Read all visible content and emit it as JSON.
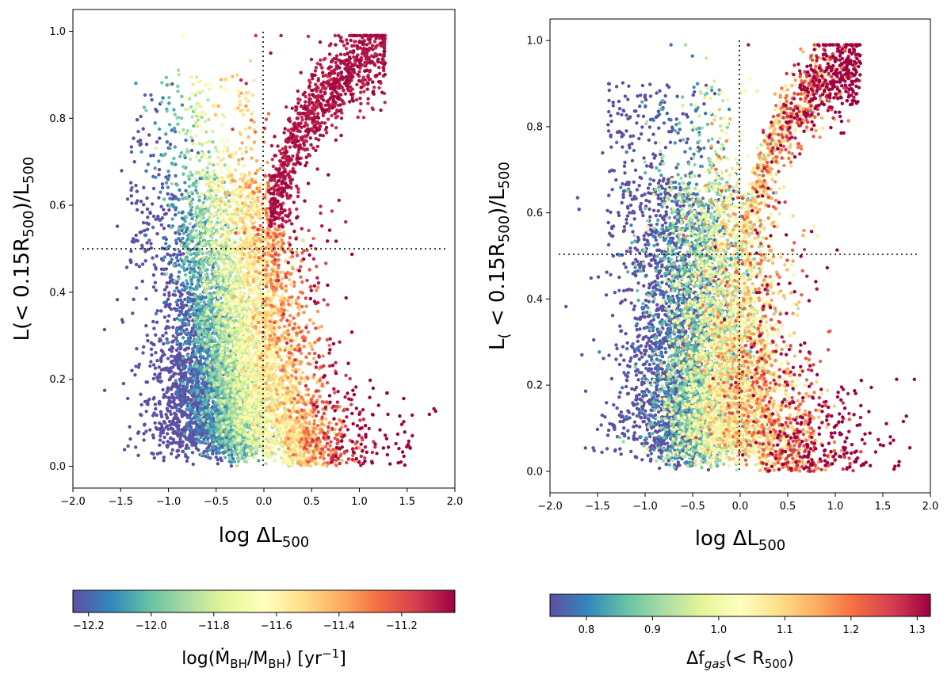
{
  "chart_data": [
    {
      "type": "scatter",
      "panel": "left",
      "xlabel": "log ΔL500",
      "ylabel": "L(< 0.15R500)/L500",
      "xlim": [
        -2.0,
        2.0
      ],
      "ylim": [
        -0.05,
        1.05
      ],
      "x_ticks": [
        "−2.0",
        "−1.5",
        "−1.0",
        "−0.5",
        "0.0",
        "0.5",
        "1.0",
        "1.5",
        "2.0"
      ],
      "y_ticks": [
        "0.0",
        "0.2",
        "0.4",
        "0.6",
        "0.8",
        "1.0"
      ],
      "x_tick_values": [
        -2.0,
        -1.5,
        -1.0,
        -0.5,
        0.0,
        0.5,
        1.0,
        1.5,
        2.0
      ],
      "y_tick_values": [
        0.0,
        0.2,
        0.4,
        0.6,
        0.8,
        1.0
      ],
      "reference_lines": {
        "vertical_x": 0.0,
        "horizontal_y": 0.5,
        "style": "dotted"
      },
      "points_cloud": {
        "approx_points": 9000,
        "x_range": [
          -1.9,
          1.9
        ],
        "y_range": [
          0.0,
          0.99
        ],
        "colormap": "Spectral_r",
        "color_trend": "low (blue) at negative x and low y; high (red) at positive x and high y"
      },
      "colorbar": {
        "label": "log(Ṁ_BH/M_BH) [yr−1]",
        "vmin": -12.25,
        "vmax": -11.03,
        "tick_values": [
          -12.2,
          -12.0,
          -11.8,
          -11.6,
          -11.4,
          -11.2
        ],
        "ticks": [
          "−12.2",
          "−12.0",
          "−11.8",
          "−11.6",
          "−11.4",
          "−11.2"
        ]
      }
    },
    {
      "type": "scatter",
      "panel": "right",
      "xlabel": "log ΔL500",
      "ylabel": "L(< 0.15R500)/L500",
      "xlim": [
        -2.0,
        2.0
      ],
      "ylim": [
        -0.05,
        1.05
      ],
      "x_ticks": [
        "−2.0",
        "−1.5",
        "−1.0",
        "−0.5",
        "0.0",
        "0.5",
        "1.0",
        "1.5",
        "2.0"
      ],
      "y_ticks": [
        "0.0",
        "0.2",
        "0.4",
        "0.6",
        "0.8",
        "1.0"
      ],
      "x_tick_values": [
        -2.0,
        -1.5,
        -1.0,
        -0.5,
        0.0,
        0.5,
        1.0,
        1.5,
        2.0
      ],
      "y_tick_values": [
        0.0,
        0.2,
        0.4,
        0.6,
        0.8,
        1.0
      ],
      "reference_lines": {
        "vertical_x": 0.0,
        "horizontal_y": 0.5,
        "style": "dotted"
      },
      "points_cloud": {
        "approx_points": 9000,
        "x_range": [
          -1.9,
          1.9
        ],
        "y_range": [
          0.0,
          0.99
        ],
        "colormap": "Spectral_r",
        "color_trend": "low (blue) at negative x, high (red) at positive x; mixed vertically"
      },
      "colorbar": {
        "label": "Δf_gas(< R500)",
        "vmin": 0.745,
        "vmax": 1.32,
        "tick_values": [
          0.8,
          0.9,
          1.0,
          1.1,
          1.2,
          1.3
        ],
        "ticks": [
          "0.8",
          "0.9",
          "1.0",
          "1.1",
          "1.2",
          "1.3"
        ]
      }
    }
  ]
}
